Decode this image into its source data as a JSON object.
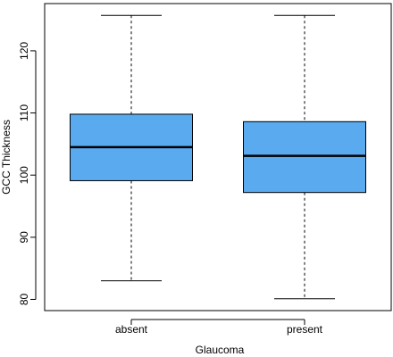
{
  "chart_data": {
    "type": "boxplot",
    "title": "",
    "xlabel": "Glaucoma",
    "ylabel": "GCC Thickness",
    "categories": [
      "absent",
      "present"
    ],
    "boxes": [
      {
        "category": "absent",
        "whisker_low": 83.0,
        "q1": 99.1,
        "median": 104.5,
        "q3": 109.8,
        "whisker_high": 125.7
      },
      {
        "category": "present",
        "whisker_low": 80.1,
        "q1": 97.2,
        "median": 103.1,
        "q3": 108.6,
        "whisker_high": 125.7
      }
    ],
    "yticks": [
      80,
      90,
      100,
      110,
      120
    ],
    "ylim": [
      78.2,
      127.6
    ],
    "grid": false,
    "legend": "none",
    "colors": {
      "box_fill": "#5aaaf0",
      "stroke": "#000000"
    }
  }
}
